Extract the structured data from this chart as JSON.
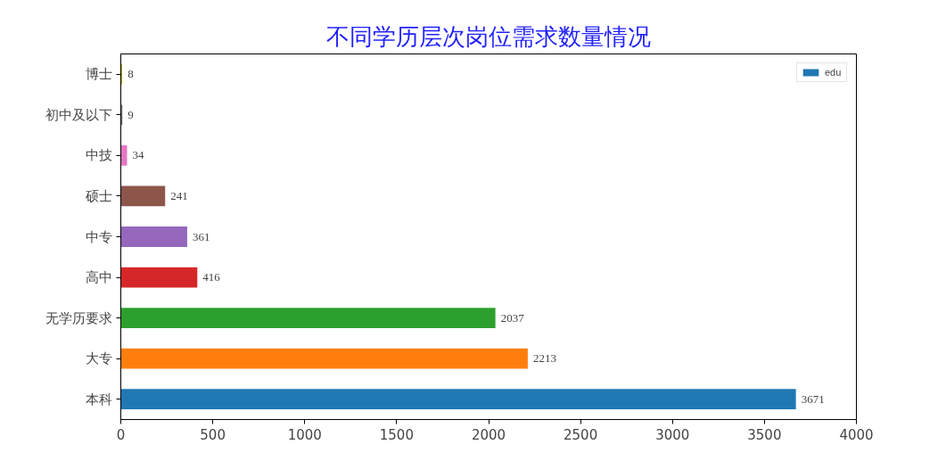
{
  "chart_data": {
    "type": "bar",
    "orientation": "horizontal",
    "title": "不同学历层次岗位需求数量情况",
    "categories": [
      "博士",
      "初中及以下",
      "中技",
      "硕士",
      "中专",
      "高中",
      "无学历要求",
      "大专",
      "本科"
    ],
    "series": [
      {
        "name": "edu",
        "color": "#1f77b4",
        "values": [
          8,
          9,
          34,
          241,
          361,
          416,
          2037,
          2213,
          3671
        ],
        "colors": [
          "#bcbd22",
          "#7f7f7f",
          "#e377c2",
          "#8c564b",
          "#9467bd",
          "#d62728",
          "#2ca02c",
          "#ff7f0e",
          "#1f77b4"
        ]
      }
    ],
    "xlim": [
      0,
      4000
    ],
    "xticks": [
      0,
      500,
      1000,
      1500,
      2000,
      2500,
      3000,
      3500,
      4000
    ],
    "data_labels": true,
    "legend": "top right",
    "grid": false
  }
}
